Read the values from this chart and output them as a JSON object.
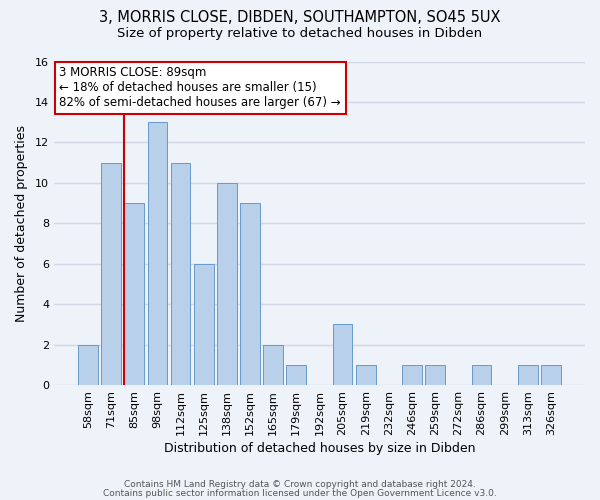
{
  "title1": "3, MORRIS CLOSE, DIBDEN, SOUTHAMPTON, SO45 5UX",
  "title2": "Size of property relative to detached houses in Dibden",
  "xlabel": "Distribution of detached houses by size in Dibden",
  "ylabel": "Number of detached properties",
  "bar_labels": [
    "58sqm",
    "71sqm",
    "85sqm",
    "98sqm",
    "112sqm",
    "125sqm",
    "138sqm",
    "152sqm",
    "165sqm",
    "179sqm",
    "192sqm",
    "205sqm",
    "219sqm",
    "232sqm",
    "246sqm",
    "259sqm",
    "272sqm",
    "286sqm",
    "299sqm",
    "313sqm",
    "326sqm"
  ],
  "bar_values": [
    2,
    11,
    9,
    13,
    11,
    6,
    10,
    9,
    2,
    1,
    0,
    3,
    1,
    0,
    1,
    1,
    0,
    1,
    0,
    1,
    1
  ],
  "bar_color_normal": "#b8d0ea",
  "bar_color_edge": "#6699cc",
  "highlight_index": 2,
  "ylim": [
    0,
    16
  ],
  "yticks": [
    0,
    2,
    4,
    6,
    8,
    10,
    12,
    14,
    16
  ],
  "annotation_title": "3 MORRIS CLOSE: 89sqm",
  "annotation_line1": "← 18% of detached houses are smaller (15)",
  "annotation_line2": "82% of semi-detached houses are larger (67) →",
  "vline_color": "#cc0000",
  "ann_box_color": "#cc0000",
  "footer1": "Contains HM Land Registry data © Crown copyright and database right 2024.",
  "footer2": "Contains public sector information licensed under the Open Government Licence v3.0.",
  "background_color": "#eef2f9",
  "grid_color": "#d0d8e8"
}
